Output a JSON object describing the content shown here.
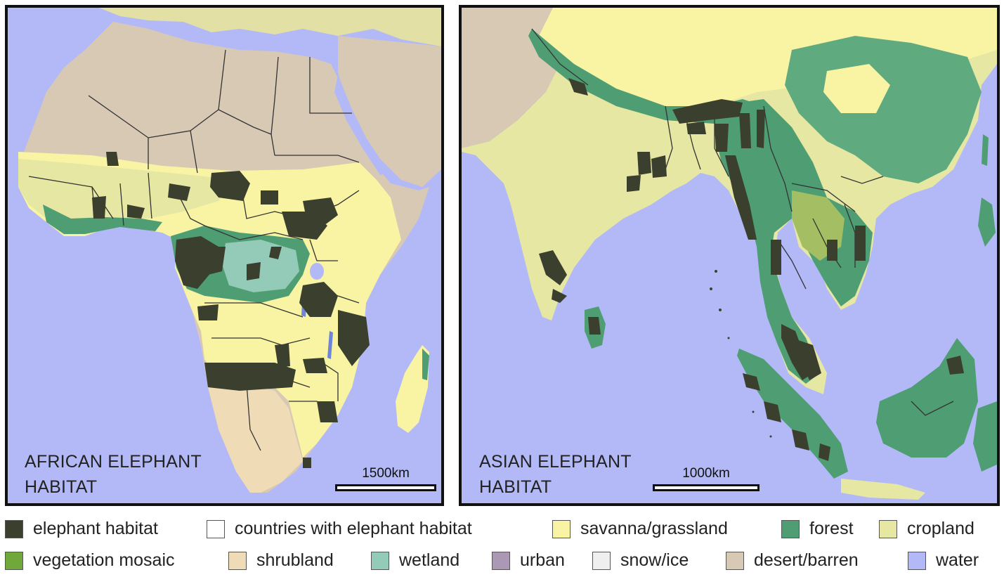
{
  "maps": {
    "africa": {
      "title": "AFRICAN ELEPHANT\nHABITAT",
      "scale_label": "1500km"
    },
    "asia": {
      "title": "ASIAN ELEPHANT\nHABITAT",
      "scale_label": "1000km"
    }
  },
  "legend": {
    "row1": [
      {
        "label": "elephant habitat",
        "color": "#3b3f2e"
      },
      {
        "label": "countries with elephant habitat",
        "color": "#ffffff"
      },
      {
        "label": "savanna/grassland",
        "color": "#f8f4a4"
      },
      {
        "label": "forest",
        "color": "#4f9e73"
      },
      {
        "label": "cropland",
        "color": "#e5e7a2"
      }
    ],
    "row2": [
      {
        "label": "vegetation mosaic",
        "color": "#70a83c"
      },
      {
        "label": "shrubland",
        "color": "#efdcb6"
      },
      {
        "label": "wetland",
        "color": "#93cbb8"
      },
      {
        "label": "urban",
        "color": "#aa98b5"
      },
      {
        "label": "snow/ice",
        "color": "#efefef"
      },
      {
        "label": "desert/barren",
        "color": "#d8c9b5"
      },
      {
        "label": "water",
        "color": "#b3b9f6"
      }
    ]
  }
}
